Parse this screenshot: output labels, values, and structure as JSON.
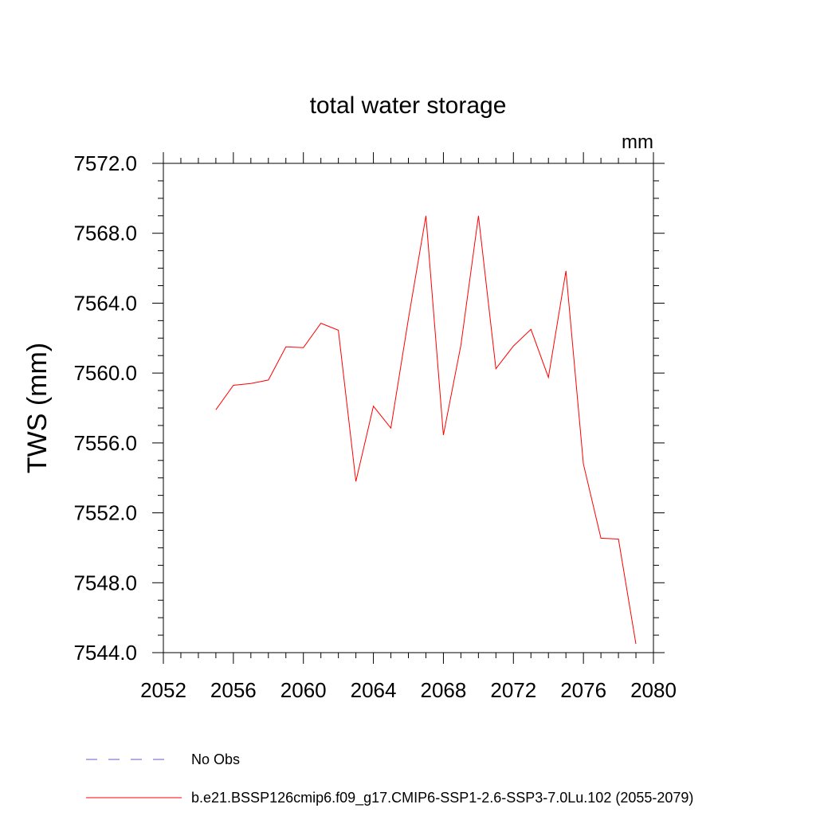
{
  "chart_data": {
    "type": "line",
    "title": "total water storage",
    "units_label": "mm",
    "ylabel": "TWS  (mm)",
    "xlabel": "",
    "xlim": [
      2052,
      2080
    ],
    "ylim": [
      7544.0,
      7572.0
    ],
    "x_ticks": [
      2052,
      2056,
      2060,
      2064,
      2068,
      2072,
      2076,
      2080
    ],
    "x_tick_labels": [
      "2052",
      "2056",
      "2060",
      "2064",
      "2068",
      "2072",
      "2076",
      "2080"
    ],
    "y_ticks": [
      7544,
      7548,
      7552,
      7556,
      7560,
      7564,
      7568,
      7572
    ],
    "y_tick_labels": [
      "7544.0",
      "7548.0",
      "7552.0",
      "7556.0",
      "7560.0",
      "7564.0",
      "7568.0",
      "7572.0"
    ],
    "grid": false,
    "legend_position": "bottom",
    "series": [
      {
        "name": "No Obs",
        "color": "#6a5acd",
        "dash": "dashed",
        "x": [],
        "values": []
      },
      {
        "name": "b.e21.BSSP126cmip6.f09_g17.CMIP6-SSP1-2.6-SSP3-7.0Lu.102 (2055-2079)",
        "color": "#ff0000",
        "dash": "solid",
        "x": [
          2055,
          2056,
          2057,
          2058,
          2059,
          2060,
          2061,
          2062,
          2063,
          2064,
          2065,
          2066,
          2067,
          2068,
          2069,
          2070,
          2071,
          2072,
          2073,
          2074,
          2075,
          2076,
          2077,
          2078,
          2079
        ],
        "values": [
          7557.9,
          7559.3,
          7559.4,
          7559.6,
          7561.5,
          7561.45,
          7562.85,
          7562.45,
          7553.8,
          7558.1,
          7556.85,
          7563.1,
          7569.0,
          7556.45,
          7561.6,
          7569.0,
          7560.25,
          7561.55,
          7562.5,
          7559.75,
          7565.85,
          7554.8,
          7550.55,
          7550.5,
          7544.5
        ]
      }
    ]
  }
}
